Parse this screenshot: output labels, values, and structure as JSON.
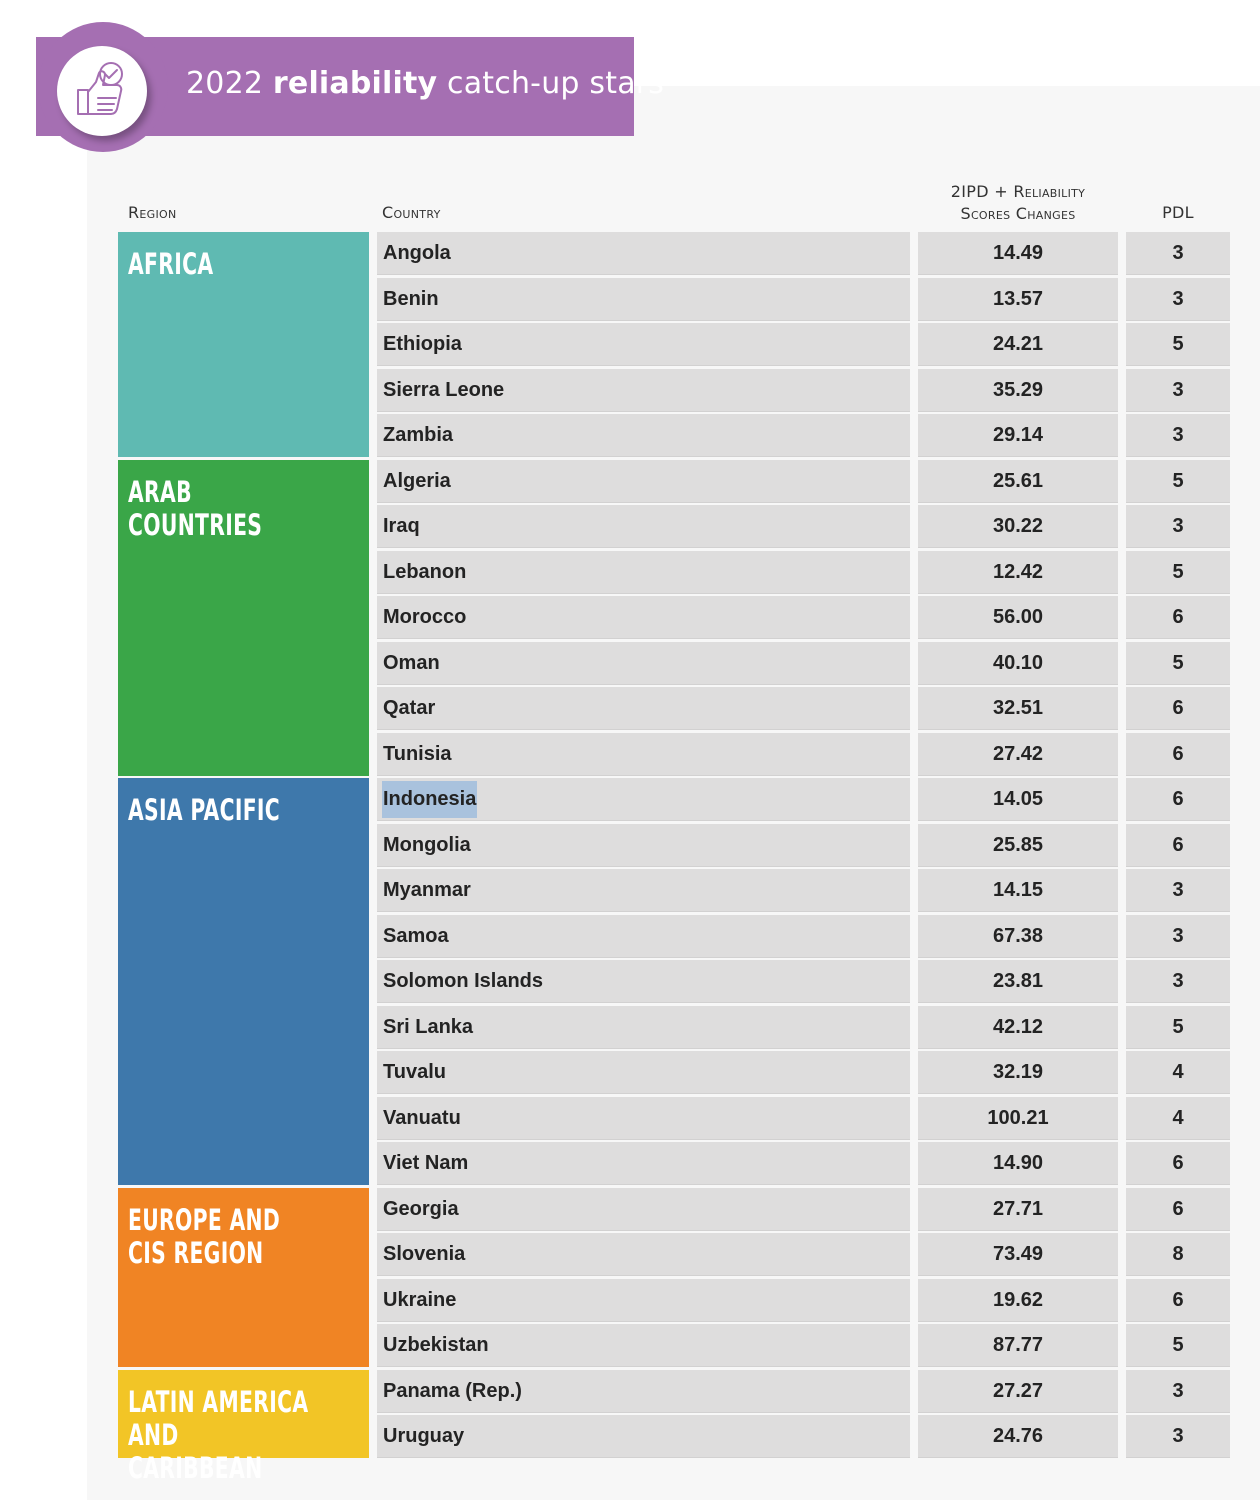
{
  "header": {
    "title_year": "2022",
    "title_bold": "reliability",
    "title_rest": "catch-up stars",
    "badge_icon": "thumbs-up-check-icon",
    "accent_color": "#a56fb2"
  },
  "columns": {
    "region": "Region",
    "country": "Country",
    "score_line1": "2IPD + Reliability",
    "score_line2": "Scores Changes",
    "pdl": "PDL"
  },
  "regions": [
    {
      "name": "AFRICA",
      "color": "#5fbab2",
      "countries": [
        {
          "country": "Angola",
          "score": "14.49",
          "pdl": "3"
        },
        {
          "country": "Benin",
          "score": "13.57",
          "pdl": "3"
        },
        {
          "country": "Ethiopia",
          "score": "24.21",
          "pdl": "5"
        },
        {
          "country": "Sierra Leone",
          "score": "35.29",
          "pdl": "3"
        },
        {
          "country": "Zambia",
          "score": "29.14",
          "pdl": "3"
        }
      ]
    },
    {
      "name": "ARAB COUNTRIES",
      "color": "#3aa648",
      "countries": [
        {
          "country": "Algeria",
          "score": "25.61",
          "pdl": "5"
        },
        {
          "country": "Iraq",
          "score": "30.22",
          "pdl": "3"
        },
        {
          "country": "Lebanon",
          "score": "12.42",
          "pdl": "5"
        },
        {
          "country": "Morocco",
          "score": "56.00",
          "pdl": "6"
        },
        {
          "country": "Oman",
          "score": "40.10",
          "pdl": "5"
        },
        {
          "country": "Qatar",
          "score": "32.51",
          "pdl": "6"
        },
        {
          "country": "Tunisia",
          "score": "27.42",
          "pdl": "6"
        }
      ]
    },
    {
      "name": "ASIA PACIFIC",
      "color": "#3e78ab",
      "countries": [
        {
          "country": "Indonesia",
          "score": "14.05",
          "pdl": "6",
          "highlighted": true
        },
        {
          "country": "Mongolia",
          "score": "25.85",
          "pdl": "6"
        },
        {
          "country": "Myanmar",
          "score": "14.15",
          "pdl": "3"
        },
        {
          "country": "Samoa",
          "score": "67.38",
          "pdl": "3"
        },
        {
          "country": "Solomon Islands",
          "score": "23.81",
          "pdl": "3"
        },
        {
          "country": "Sri Lanka",
          "score": "42.12",
          "pdl": "5"
        },
        {
          "country": "Tuvalu",
          "score": "32.19",
          "pdl": "4"
        },
        {
          "country": "Vanuatu",
          "score": "100.21",
          "pdl": "4"
        },
        {
          "country": "Viet Nam",
          "score": "14.90",
          "pdl": "6"
        }
      ]
    },
    {
      "name": "EUROPE AND\nCIS REGION",
      "color": "#f08424",
      "countries": [
        {
          "country": "Georgia",
          "score": "27.71",
          "pdl": "6"
        },
        {
          "country": "Slovenia",
          "score": "73.49",
          "pdl": "8"
        },
        {
          "country": "Ukraine",
          "score": "19.62",
          "pdl": "6"
        },
        {
          "country": "Uzbekistan",
          "score": "87.77",
          "pdl": "5"
        }
      ]
    },
    {
      "name": "LATIN AMERICA\nAND CARIBBEAN",
      "color": "#f2c526",
      "countries": [
        {
          "country": "Panama (Rep.)",
          "score": "27.27",
          "pdl": "3"
        },
        {
          "country": "Uruguay",
          "score": "24.76",
          "pdl": "3"
        }
      ]
    }
  ]
}
